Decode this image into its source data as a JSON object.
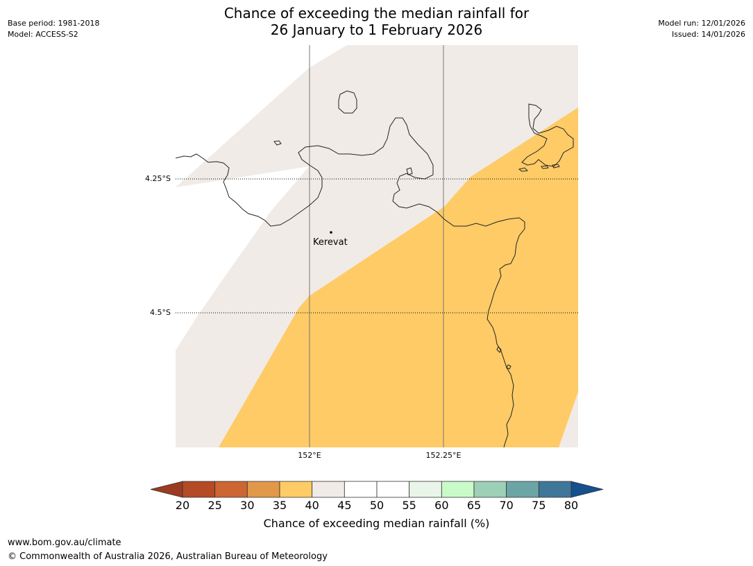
{
  "header": {
    "title_line1": "Chance of exceeding the median rainfall for",
    "title_line2": "26 January to 1 February 2026",
    "base_period": "Base period: 1981-2018",
    "model": "Model: ACCESS-S2",
    "model_run": "Model run: 12/01/2026",
    "issued": "Issued: 14/01/2026"
  },
  "map": {
    "lat_labels": [
      "4.25°S",
      "4.5°S"
    ],
    "lon_labels": [
      "152°E",
      "152.25°E"
    ],
    "place": {
      "name": "Kerevat",
      "lat": -4.35,
      "lon": 152.04
    },
    "colors": {
      "c35_40": "#fecb66",
      "c40_45": "#f0ebe6",
      "coast": "#222222"
    }
  },
  "colorbar": {
    "ticks": [
      "20",
      "25",
      "30",
      "35",
      "40",
      "45",
      "50",
      "55",
      "60",
      "65",
      "70",
      "75",
      "80"
    ],
    "colors": [
      "#b44a26",
      "#cc6633",
      "#e29849",
      "#fecb66",
      "#f0ebe6",
      "#ffffff",
      "#ffffff",
      "#e8f5e8",
      "#c9fbc9",
      "#9ecfb7",
      "#6ca5a6",
      "#3f7799"
    ],
    "under_color": "#9a3b22",
    "over_color": "#15508f",
    "label": "Chance of exceeding median rainfall (%)"
  },
  "footer": {
    "url": "www.bom.gov.au/climate",
    "copyright": "© Commonwealth of Australia 2026, Australian Bureau of Meteorology"
  }
}
